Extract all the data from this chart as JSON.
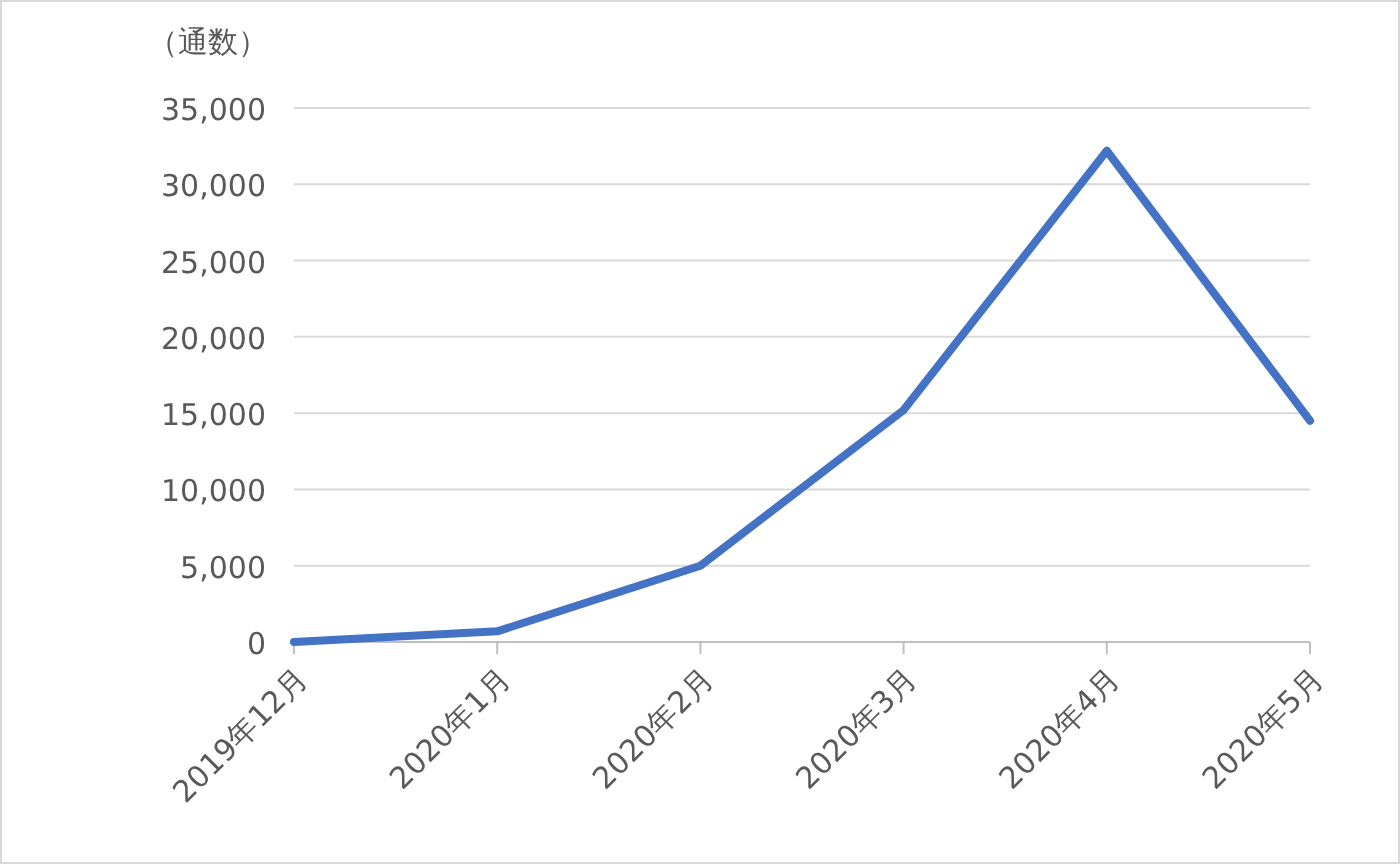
{
  "chart_data": {
    "type": "line",
    "ylabel": "（通数）",
    "categories": [
      "2019年12月",
      "2020年1月",
      "2020年2月",
      "2020年3月",
      "2020年4月",
      "2020年5月"
    ],
    "values": [
      0,
      700,
      5000,
      15200,
      32200,
      14500
    ],
    "color": "#4472c4",
    "ylim": [
      0,
      35000
    ],
    "yticks": [
      0,
      {
        "value": 5000,
        "label": "5,000"
      },
      {
        "value": 10000,
        "label": "10,000"
      },
      {
        "value": 15000,
        "label": "15,000"
      },
      {
        "value": 20000,
        "label": "20,000"
      },
      {
        "value": 25000,
        "label": "25,000"
      },
      {
        "value": 30000,
        "label": "30,000"
      },
      {
        "value": 35000,
        "label": "35,000"
      }
    ],
    "grid": "y"
  }
}
